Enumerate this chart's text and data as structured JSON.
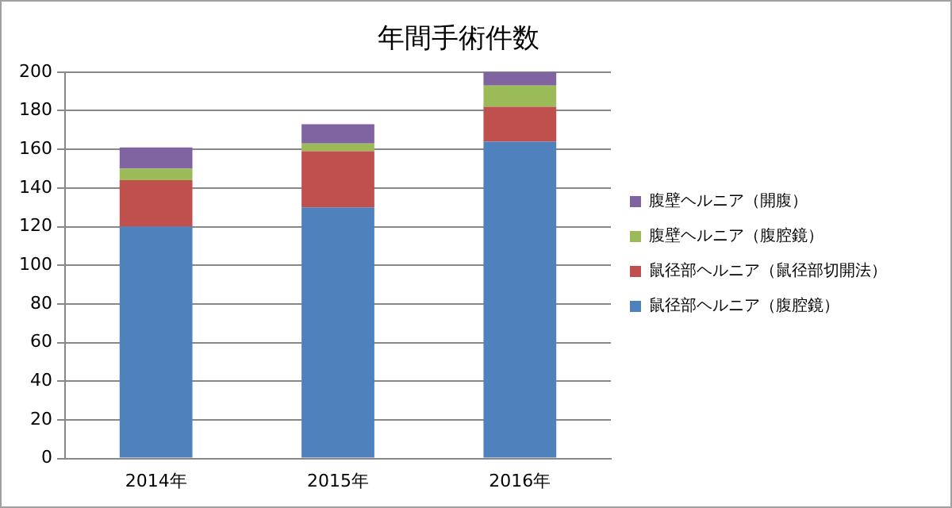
{
  "chart_data": {
    "type": "bar",
    "title": "年間手術件数",
    "categories": [
      "2014年",
      "2015年",
      "2016年"
    ],
    "stacked": true,
    "ylim": [
      0,
      200
    ],
    "yticks": [
      0,
      20,
      40,
      60,
      80,
      100,
      120,
      140,
      160,
      180,
      200
    ],
    "grid": "y",
    "legend": "right",
    "series": [
      {
        "name": "鼠径部ヘルニア（腹腔鏡）",
        "color": "#4f81bd",
        "values": [
          120,
          130,
          164
        ]
      },
      {
        "name": "鼠径部ヘルニア（鼠径部切開法）",
        "color": "#c0504d",
        "values": [
          24,
          29,
          18
        ]
      },
      {
        "name": "腹壁ヘルニア（腹腔鏡）",
        "color": "#9bbb59",
        "values": [
          6,
          4,
          11
        ]
      },
      {
        "name": "腹壁ヘルニア（開腹）",
        "color": "#8064a2",
        "values": [
          11,
          10,
          7
        ]
      }
    ]
  }
}
